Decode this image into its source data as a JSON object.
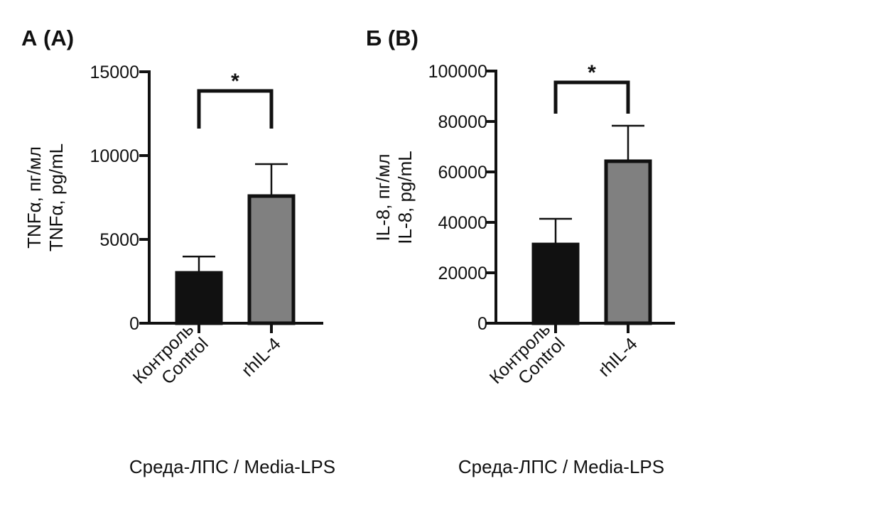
{
  "chart_data": [
    {
      "type": "bar",
      "panel_title": "А (A)",
      "categories": [
        "Контроль\nControl",
        "rhIL-4"
      ],
      "category_lines": [
        [
          "Контроль",
          "Control"
        ],
        [
          "rhIL-4"
        ]
      ],
      "values": [
        3090,
        7670
      ],
      "error_upper": [
        3980,
        9490
      ],
      "colors": [
        "#111111",
        "#808080"
      ],
      "ylabel_lines": [
        "TNFα, пг/мл",
        "TNFα, pg/mL"
      ],
      "xlabel": "Среда-ЛПС / Media-LPS",
      "ylim": [
        0,
        15000
      ],
      "yticks": [
        0,
        5000,
        10000,
        15000
      ],
      "significance": {
        "pair": [
          0,
          1
        ],
        "label": "*"
      },
      "grid": false
    },
    {
      "type": "bar",
      "panel_title": "Б (B)",
      "categories": [
        "Контроль\nControl",
        "rhIL-4"
      ],
      "category_lines": [
        [
          "Контроль",
          "Control"
        ],
        [
          "rhIL-4"
        ]
      ],
      "values": [
        31800,
        64800
      ],
      "error_upper": [
        41400,
        78300
      ],
      "colors": [
        "#111111",
        "#808080"
      ],
      "ylabel_lines": [
        "IL-8, пг/мл",
        "IL-8, pg/mL"
      ],
      "xlabel": "Среда-ЛПС / Media-LPS",
      "ylim": [
        0,
        100000
      ],
      "yticks": [
        0,
        20000,
        40000,
        60000,
        80000,
        100000
      ],
      "significance": {
        "pair": [
          0,
          1
        ],
        "label": "*"
      },
      "grid": false
    }
  ]
}
